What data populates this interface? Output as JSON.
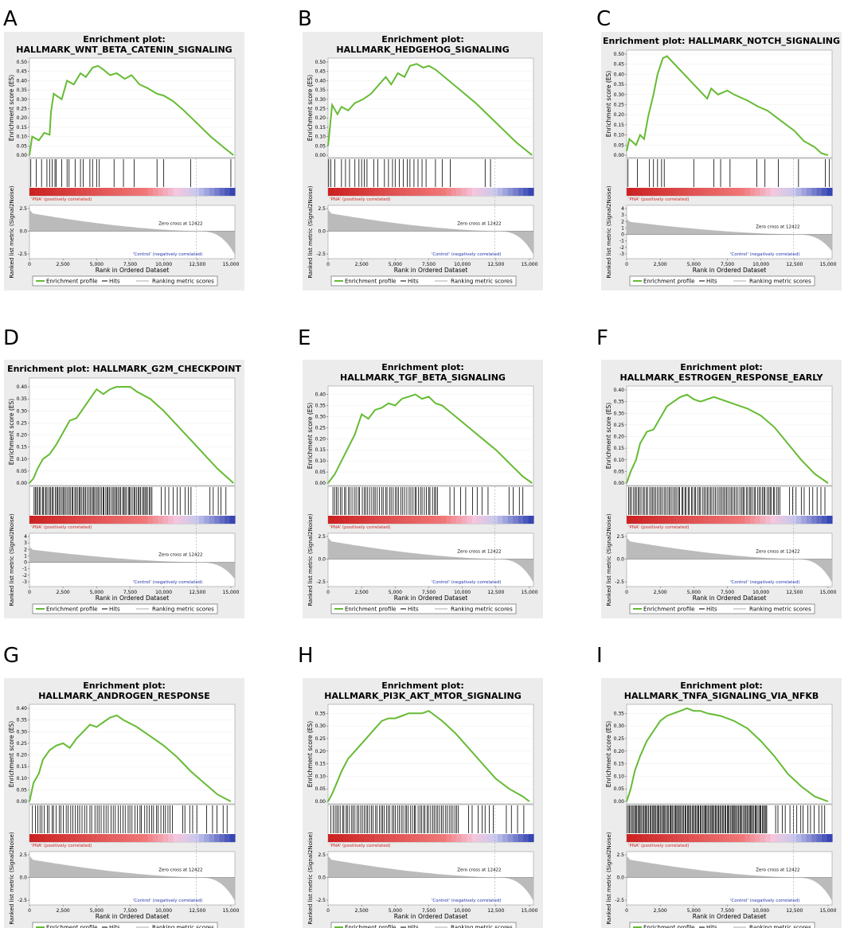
{
  "figure": {
    "shared": {
      "es_ylabel": "Enrichment score (ES)",
      "rank_ylabel": "Ranked list metric (Signal2Noise)",
      "xlabel": "Rank in Ordered Dataset",
      "pos_label": "'PNA' (positively correlated)",
      "neg_label": "'Control' (negatively correlated)",
      "zero_cross": "Zero cross at 12422",
      "legend": [
        "Enrichment profile",
        "Hits",
        "Ranking metric scores"
      ],
      "x_ticks": [
        "0",
        "2,500",
        "5,000",
        "7,500",
        "10,000",
        "12,500",
        "15,000"
      ],
      "colors": {
        "profile": "#66bb33",
        "panel_bg": "#ececec",
        "pos": "#cc2222",
        "neg": "#2233aa",
        "fill": "#bbbbbb"
      }
    },
    "panels": [
      {
        "letter": "A",
        "title_lines": [
          "Enrichment plot:",
          "HALLMARK_WNT_BETA_CATENIN_SIGNALING"
        ],
        "es_ticks": [
          "0.50",
          "0.45",
          "0.40",
          "0.35",
          "0.30",
          "0.25",
          "0.20",
          "0.15",
          "0.10",
          "0.05",
          "0.00"
        ],
        "rank_ticks": [
          "2.5",
          "0.0",
          "-2.5"
        ]
      },
      {
        "letter": "B",
        "title_lines": [
          "Enrichment plot:",
          "HALLMARK_HEDGEHOG_SIGNALING"
        ],
        "es_ticks": [
          "0.50",
          "0.45",
          "0.40",
          "0.35",
          "0.30",
          "0.25",
          "0.20",
          "0.15",
          "0.10",
          "0.05",
          "0.00"
        ],
        "rank_ticks": [
          "2.5",
          "0.0",
          "-2.5"
        ]
      },
      {
        "letter": "C",
        "title_lines": [
          "Enrichment plot: HALLMARK_NOTCH_SIGNALING"
        ],
        "es_ticks": [
          "0.50",
          "0.45",
          "0.40",
          "0.35",
          "0.30",
          "0.25",
          "0.20",
          "0.15",
          "0.10",
          "0.05",
          "0.00"
        ],
        "rank_ticks": [
          "4",
          "3",
          "2",
          "1",
          "0",
          "-1",
          "-2",
          "-3"
        ]
      },
      {
        "letter": "D",
        "title_lines": [
          "Enrichment plot: HALLMARK_G2M_CHECKPOINT"
        ],
        "es_ticks": [
          "0.40",
          "0.35",
          "0.30",
          "0.25",
          "0.20",
          "0.15",
          "0.10",
          "0.05",
          "0.00"
        ],
        "rank_ticks": [
          "4",
          "3",
          "2",
          "1",
          "0",
          "-1",
          "-2",
          "-3"
        ]
      },
      {
        "letter": "E",
        "title_lines": [
          "Enrichment plot:",
          "HALLMARK_TGF_BETA_SIGNALING"
        ],
        "es_ticks": [
          "0.40",
          "0.35",
          "0.30",
          "0.25",
          "0.20",
          "0.15",
          "0.10",
          "0.05",
          "0.00"
        ],
        "rank_ticks": [
          "2.5",
          "0.0",
          "-2.5"
        ]
      },
      {
        "letter": "F",
        "title_lines": [
          "Enrichment plot:",
          "HALLMARK_ESTROGEN_RESPONSE_EARLY"
        ],
        "es_ticks": [
          "0.40",
          "0.35",
          "0.30",
          "0.25",
          "0.20",
          "0.15",
          "0.10",
          "0.05",
          "0.00"
        ],
        "rank_ticks": [
          "2.5",
          "0.0",
          "-2.5"
        ]
      },
      {
        "letter": "G",
        "title_lines": [
          "Enrichment plot:",
          "HALLMARK_ANDROGEN_RESPONSE"
        ],
        "es_ticks": [
          "0.40",
          "0.35",
          "0.30",
          "0.25",
          "0.20",
          "0.15",
          "0.10",
          "0.05",
          "0.00"
        ],
        "rank_ticks": [
          "2.5",
          "0.0",
          "-2.5"
        ]
      },
      {
        "letter": "H",
        "title_lines": [
          "Enrichment plot:",
          "HALLMARK_PI3K_AKT_MTOR_SIGNALING"
        ],
        "es_ticks": [
          "0.35",
          "0.30",
          "0.25",
          "0.20",
          "0.15",
          "0.10",
          "0.05",
          "0.00"
        ],
        "rank_ticks": [
          "2.5",
          "0.0",
          "-2.5"
        ]
      },
      {
        "letter": "I",
        "title_lines": [
          "Enrichment plot:",
          "HALLMARK_TNFA_SIGNALING_VIA_NFKB"
        ],
        "es_ticks": [
          "0.35",
          "0.30",
          "0.25",
          "0.20",
          "0.15",
          "0.10",
          "0.05",
          "0.00"
        ],
        "rank_ticks": [
          "2.5",
          "0.0",
          "-2.5"
        ]
      }
    ]
  },
  "chart_data": [
    {
      "type": "line",
      "panel": "A",
      "title": "Enrichment plot: HALLMARK_WNT_BETA_CATENIN_SIGNALING",
      "xlabel": "Rank in Ordered Dataset",
      "ylabel": "Enrichment score (ES)",
      "ylim": [
        0,
        0.5
      ],
      "xlim": [
        0,
        15300
      ],
      "zero_cross": 12422,
      "x": [
        0,
        200,
        700,
        1100,
        1500,
        1600,
        1800,
        2400,
        2800,
        3300,
        3800,
        4200,
        4700,
        5100,
        5500,
        6000,
        6500,
        7100,
        7600,
        8200,
        8800,
        9500,
        10000,
        10700,
        11500,
        12500,
        13500,
        14500,
        15200
      ],
      "y": [
        0,
        0.1,
        0.08,
        0.12,
        0.11,
        0.23,
        0.33,
        0.3,
        0.4,
        0.38,
        0.44,
        0.42,
        0.47,
        0.48,
        0.46,
        0.43,
        0.44,
        0.41,
        0.43,
        0.38,
        0.36,
        0.33,
        0.32,
        0.29,
        0.24,
        0.17,
        0.1,
        0.04,
        0.0
      ],
      "hits": [
        100,
        500,
        900,
        1300,
        1500,
        1700,
        1900,
        2000,
        2400,
        2800,
        2950,
        3400,
        3800,
        4000,
        4500,
        4700,
        5000,
        5200,
        6300,
        7000,
        7800,
        9500,
        10000,
        12000,
        15000
      ]
    },
    {
      "type": "line",
      "panel": "B",
      "title": "Enrichment plot: HALLMARK_HEDGEHOG_SIGNALING",
      "xlabel": "Rank in Ordered Dataset",
      "ylabel": "Enrichment score (ES)",
      "ylim": [
        0,
        0.5
      ],
      "xlim": [
        0,
        15300
      ],
      "zero_cross": 12422,
      "x": [
        0,
        100,
        300,
        700,
        1000,
        1500,
        2000,
        2600,
        3200,
        3800,
        4300,
        4700,
        5200,
        5700,
        6100,
        6600,
        7100,
        7500,
        8000,
        9000,
        10000,
        11000,
        12000,
        13000,
        14000,
        15200
      ],
      "y": [
        0.05,
        0.12,
        0.27,
        0.22,
        0.26,
        0.24,
        0.28,
        0.3,
        0.33,
        0.38,
        0.42,
        0.38,
        0.44,
        0.42,
        0.48,
        0.49,
        0.47,
        0.48,
        0.46,
        0.4,
        0.34,
        0.28,
        0.21,
        0.14,
        0.07,
        0.0
      ],
      "hits": [
        50,
        200,
        500,
        1000,
        1300,
        1600,
        2000,
        2300,
        2500,
        2700,
        2900,
        3400,
        3700,
        4200,
        4500,
        4800,
        5000,
        5300,
        5600,
        5900,
        6100,
        6400,
        6700,
        7000,
        7300,
        8000,
        8500,
        9100,
        11700,
        12100
      ]
    },
    {
      "type": "line",
      "panel": "C",
      "title": "Enrichment plot: HALLMARK_NOTCH_SIGNALING",
      "xlabel": "Rank in Ordered Dataset",
      "ylabel": "Enrichment score (ES)",
      "ylim": [
        0,
        0.5
      ],
      "xlim": [
        0,
        15300
      ],
      "zero_cross": 12422,
      "x": [
        0,
        200,
        700,
        1000,
        1300,
        1600,
        2000,
        2300,
        2700,
        3000,
        4000,
        5000,
        6000,
        6300,
        6800,
        7500,
        8000,
        9000,
        9800,
        10500,
        11500,
        12500,
        13200,
        14000,
        14500,
        15000
      ],
      "y": [
        0.02,
        0.08,
        0.05,
        0.1,
        0.08,
        0.19,
        0.3,
        0.4,
        0.48,
        0.49,
        0.42,
        0.35,
        0.28,
        0.33,
        0.3,
        0.32,
        0.3,
        0.27,
        0.24,
        0.22,
        0.17,
        0.12,
        0.07,
        0.04,
        0.01,
        0.0
      ],
      "hits": [
        100,
        800,
        1700,
        2000,
        2300,
        2600,
        2800,
        5000,
        6500,
        7000,
        7700,
        9700,
        10300,
        11300,
        12800,
        14800,
        15100
      ]
    },
    {
      "type": "line",
      "panel": "D",
      "title": "Enrichment plot: HALLMARK_G2M_CHECKPOINT",
      "xlabel": "Rank in Ordered Dataset",
      "ylabel": "Enrichment score (ES)",
      "ylim": [
        0,
        0.42
      ],
      "xlim": [
        0,
        15300
      ],
      "zero_cross": 12422,
      "x": [
        0,
        300,
        600,
        1000,
        1500,
        2000,
        2500,
        3000,
        3500,
        4000,
        4500,
        5000,
        5500,
        6000,
        6500,
        7000,
        7500,
        8000,
        9000,
        10000,
        11000,
        12000,
        13000,
        14000,
        15200
      ],
      "y": [
        0,
        0.02,
        0.06,
        0.1,
        0.12,
        0.16,
        0.21,
        0.26,
        0.27,
        0.31,
        0.35,
        0.39,
        0.37,
        0.39,
        0.4,
        0.4,
        0.4,
        0.38,
        0.35,
        0.3,
        0.24,
        0.18,
        0.12,
        0.06,
        0.0
      ],
      "hits_ranges": [
        [
          300,
          9200,
          85
        ],
        [
          9800,
          12300,
          9
        ],
        [
          13300,
          14900,
          5
        ]
      ]
    },
    {
      "type": "line",
      "panel": "E",
      "title": "Enrichment plot: HALLMARK_TGF_BETA_SIGNALING",
      "xlabel": "Rank in Ordered Dataset",
      "ylabel": "Enrichment score (ES)",
      "ylim": [
        0,
        0.42
      ],
      "xlim": [
        0,
        15300
      ],
      "zero_cross": 12422,
      "x": [
        0,
        500,
        1000,
        1500,
        2000,
        2500,
        3000,
        3500,
        4000,
        4500,
        5000,
        5500,
        6000,
        6500,
        7000,
        7500,
        8000,
        8500,
        9500,
        10500,
        11500,
        12500,
        13500,
        14500,
        15200
      ],
      "y": [
        0,
        0.04,
        0.1,
        0.16,
        0.22,
        0.31,
        0.29,
        0.33,
        0.34,
        0.36,
        0.35,
        0.38,
        0.39,
        0.4,
        0.38,
        0.39,
        0.36,
        0.35,
        0.3,
        0.25,
        0.2,
        0.15,
        0.09,
        0.03,
        0.0
      ],
      "hits_ranges": [
        [
          300,
          8300,
          55
        ],
        [
          8900,
          12300,
          8
        ],
        [
          13300,
          14900,
          4
        ]
      ]
    },
    {
      "type": "line",
      "panel": "F",
      "title": "Enrichment plot: HALLMARK_ESTROGEN_RESPONSE_EARLY",
      "xlabel": "Rank in Ordered Dataset",
      "ylabel": "Enrichment score (ES)",
      "ylim": [
        0,
        0.4
      ],
      "xlim": [
        0,
        15300
      ],
      "zero_cross": 12422,
      "x": [
        0,
        300,
        700,
        1000,
        1500,
        2000,
        2500,
        3000,
        3500,
        4000,
        4500,
        5000,
        5500,
        6000,
        6500,
        7000,
        8000,
        9000,
        10000,
        11000,
        12000,
        13000,
        14000,
        15000
      ],
      "y": [
        0,
        0.05,
        0.1,
        0.17,
        0.22,
        0.23,
        0.28,
        0.33,
        0.35,
        0.37,
        0.38,
        0.36,
        0.35,
        0.36,
        0.37,
        0.36,
        0.34,
        0.32,
        0.29,
        0.24,
        0.17,
        0.1,
        0.04,
        0.0
      ],
      "hits_ranges": [
        [
          100,
          11500,
          95
        ],
        [
          12000,
          15000,
          10
        ]
      ]
    },
    {
      "type": "line",
      "panel": "G",
      "title": "Enrichment plot: HALLMARK_ANDROGEN_RESPONSE",
      "xlabel": "Rank in Ordered Dataset",
      "ylabel": "Enrichment score (ES)",
      "ylim": [
        0,
        0.4
      ],
      "xlim": [
        0,
        15300
      ],
      "zero_cross": 12422,
      "x": [
        0,
        300,
        700,
        1000,
        1500,
        2000,
        2500,
        3000,
        3500,
        4000,
        4500,
        5000,
        5500,
        6000,
        6500,
        7000,
        8000,
        9000,
        10000,
        11000,
        12000,
        13000,
        14000,
        15000
      ],
      "y": [
        0,
        0.08,
        0.12,
        0.18,
        0.22,
        0.24,
        0.25,
        0.23,
        0.27,
        0.3,
        0.33,
        0.32,
        0.34,
        0.36,
        0.37,
        0.35,
        0.32,
        0.28,
        0.24,
        0.19,
        0.13,
        0.08,
        0.03,
        0.0
      ],
      "hits_ranges": [
        [
          200,
          10800,
          60
        ],
        [
          11300,
          12600,
          5
        ],
        [
          13100,
          15000,
          5
        ]
      ]
    },
    {
      "type": "line",
      "panel": "H",
      "title": "Enrichment plot: HALLMARK_PI3K_AKT_MTOR_SIGNALING",
      "xlabel": "Rank in Ordered Dataset",
      "ylabel": "Enrichment score (ES)",
      "ylim": [
        0,
        0.37
      ],
      "xlim": [
        0,
        15300
      ],
      "zero_cross": 12422,
      "x": [
        0,
        300,
        700,
        1000,
        1500,
        2000,
        2500,
        3000,
        3500,
        4000,
        4500,
        5000,
        5500,
        6000,
        6500,
        7000,
        7500,
        8000,
        8500,
        9500,
        10500,
        11500,
        12500,
        13500,
        14500,
        15000
      ],
      "y": [
        0,
        0.03,
        0.08,
        0.12,
        0.17,
        0.2,
        0.23,
        0.26,
        0.29,
        0.32,
        0.33,
        0.33,
        0.34,
        0.35,
        0.35,
        0.35,
        0.36,
        0.34,
        0.32,
        0.27,
        0.21,
        0.15,
        0.09,
        0.05,
        0.02,
        0.0
      ],
      "hits_ranges": [
        [
          200,
          9800,
          70
        ],
        [
          10400,
          12600,
          7
        ],
        [
          13200,
          15000,
          4
        ]
      ]
    },
    {
      "type": "line",
      "panel": "I",
      "title": "Enrichment plot: HALLMARK_TNFA_SIGNALING_VIA_NFKB",
      "xlabel": "Rank in Ordered Dataset",
      "ylabel": "Enrichment score (ES)",
      "ylim": [
        0,
        0.37
      ],
      "xlim": [
        0,
        15300
      ],
      "zero_cross": 12422,
      "x": [
        0,
        300,
        600,
        1000,
        1500,
        2000,
        2500,
        3000,
        3500,
        4000,
        4500,
        5000,
        5500,
        6000,
        7000,
        8000,
        9000,
        10000,
        11000,
        12000,
        13000,
        14000,
        15000
      ],
      "y": [
        0,
        0.05,
        0.12,
        0.18,
        0.24,
        0.28,
        0.32,
        0.34,
        0.35,
        0.36,
        0.37,
        0.36,
        0.36,
        0.35,
        0.34,
        0.32,
        0.29,
        0.24,
        0.18,
        0.11,
        0.06,
        0.02,
        0.0
      ],
      "hits_ranges": [
        [
          50,
          10500,
          120
        ],
        [
          11000,
          15000,
          15
        ]
      ]
    }
  ]
}
